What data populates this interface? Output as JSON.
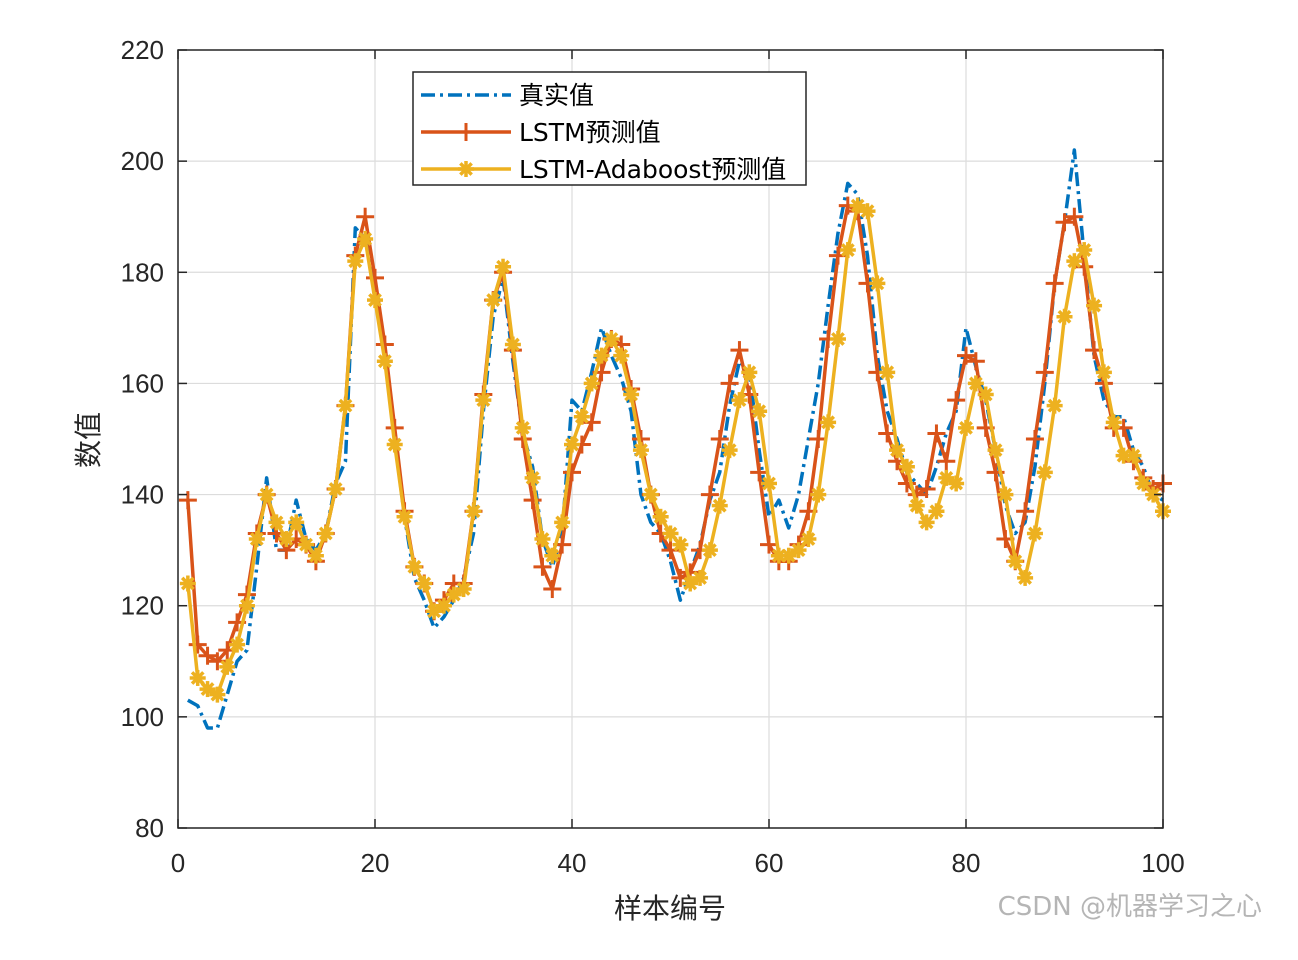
{
  "chart_data": {
    "type": "line",
    "title": "",
    "xlabel": "样本编号",
    "ylabel": "数值",
    "xlim": [
      0,
      100
    ],
    "ylim": [
      80,
      220
    ],
    "xticks": [
      "0",
      "20",
      "40",
      "60",
      "80",
      "100"
    ],
    "yticks": [
      "80",
      "100",
      "120",
      "140",
      "160",
      "180",
      "200",
      "220"
    ],
    "grid": true,
    "legend_position": "top-center",
    "x": [
      1,
      2,
      3,
      4,
      5,
      6,
      7,
      8,
      9,
      10,
      11,
      12,
      13,
      14,
      15,
      16,
      17,
      18,
      19,
      20,
      21,
      22,
      23,
      24,
      25,
      26,
      27,
      28,
      29,
      30,
      31,
      32,
      33,
      34,
      35,
      36,
      37,
      38,
      39,
      40,
      41,
      42,
      43,
      44,
      45,
      46,
      47,
      48,
      49,
      50,
      51,
      52,
      53,
      54,
      55,
      56,
      57,
      58,
      59,
      60,
      61,
      62,
      63,
      64,
      65,
      66,
      67,
      68,
      69,
      70,
      71,
      72,
      73,
      74,
      75,
      76,
      77,
      78,
      79,
      80,
      81,
      82,
      83,
      84,
      85,
      86,
      87,
      88,
      89,
      90,
      91,
      92,
      93,
      94,
      95,
      96,
      97,
      98,
      99,
      100
    ],
    "series": [
      {
        "name": "真实值",
        "color": "#0072BD",
        "style": "dash-dot",
        "marker": "none",
        "values": [
          103,
          102,
          98,
          98,
          104,
          110,
          112,
          127,
          143,
          130,
          130,
          139,
          132,
          130,
          133,
          142,
          146,
          188,
          186,
          177,
          165,
          150,
          136,
          125,
          121,
          116,
          118,
          121,
          125,
          133,
          155,
          172,
          179,
          164,
          151,
          145,
          132,
          127,
          133,
          157,
          155,
          162,
          170,
          165,
          161,
          155,
          140,
          135,
          133,
          128,
          121,
          126,
          131,
          139,
          144,
          156,
          164,
          162,
          148,
          136,
          139,
          134,
          140,
          150,
          160,
          174,
          187,
          196,
          194,
          183,
          165,
          155,
          150,
          144,
          142,
          140,
          145,
          151,
          155,
          170,
          163,
          157,
          148,
          138,
          133,
          135,
          145,
          160,
          178,
          189,
          202,
          183,
          165,
          157,
          154,
          154,
          148,
          145,
          140,
          139
        ]
      },
      {
        "name": "LSTM预测值",
        "color": "#D95319",
        "style": "solid",
        "marker": "plus",
        "values": [
          139,
          113,
          111,
          110,
          112,
          117,
          122,
          133,
          140,
          133,
          130,
          132,
          131,
          128,
          133,
          141,
          156,
          183,
          190,
          179,
          167,
          152,
          137,
          127,
          124,
          119,
          121,
          124,
          124,
          137,
          158,
          175,
          180,
          166,
          150,
          139,
          127,
          123,
          131,
          144,
          149,
          153,
          162,
          168,
          167,
          159,
          150,
          140,
          133,
          130,
          125,
          126,
          130,
          140,
          150,
          160,
          166,
          158,
          144,
          131,
          128,
          128,
          131,
          137,
          150,
          168,
          183,
          192,
          191,
          178,
          162,
          151,
          146,
          142,
          140,
          141,
          151,
          146,
          157,
          165,
          164,
          152,
          144,
          132,
          128,
          137,
          150,
          162,
          178,
          189,
          190,
          181,
          166,
          160,
          152,
          152,
          146,
          143,
          141,
          142
        ]
      },
      {
        "name": "LSTM-Adaboost预测值",
        "color": "#EDB120",
        "style": "solid",
        "marker": "asterisk",
        "values": [
          124,
          107,
          105,
          104,
          109,
          113,
          120,
          132,
          140,
          135,
          132,
          135,
          131,
          129,
          133,
          141,
          156,
          182,
          186,
          175,
          164,
          149,
          136,
          127,
          124,
          119,
          120,
          122,
          123,
          137,
          157,
          175,
          181,
          167,
          152,
          143,
          132,
          129,
          135,
          149,
          154,
          160,
          165,
          168,
          165,
          158,
          148,
          140,
          136,
          133,
          131,
          124,
          125,
          130,
          138,
          148,
          157,
          162,
          155,
          142,
          129,
          129,
          130,
          132,
          140,
          153,
          168,
          184,
          192,
          191,
          178,
          162,
          148,
          145,
          138,
          135,
          137,
          143,
          142,
          152,
          160,
          158,
          148,
          140,
          128,
          125,
          133,
          144,
          156,
          172,
          182,
          184,
          174,
          162,
          153,
          147,
          147,
          142,
          140,
          137
        ]
      }
    ],
    "watermark": "CSDN @机器学习之心"
  }
}
